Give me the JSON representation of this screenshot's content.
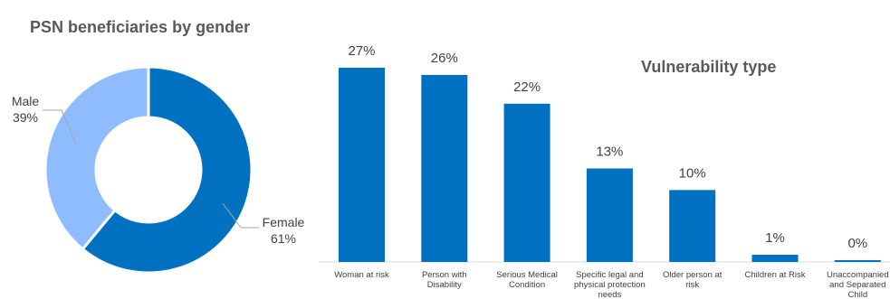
{
  "chart_data": [
    {
      "type": "pie",
      "title": "PSN beneficiaries by gender",
      "categories": [
        "Male",
        "Female"
      ],
      "values": [
        39,
        61
      ],
      "value_labels": [
        "39%",
        "61%"
      ],
      "colors": [
        "#8fbcff",
        "#0070c0"
      ],
      "donut": true
    },
    {
      "type": "bar",
      "title": "Vulnerability type",
      "categories": [
        [
          "Woman at risk"
        ],
        [
          "Person with",
          "Disability"
        ],
        [
          "Serious Medical",
          "Condition"
        ],
        [
          "Specific legal and",
          "physical protection",
          "needs"
        ],
        [
          "Older person at",
          "risk"
        ],
        [
          "Children at Risk"
        ],
        [
          "Unaccompanied",
          "and Separated",
          "Child"
        ]
      ],
      "values": [
        27,
        26,
        22,
        13,
        10,
        1,
        0
      ],
      "value_labels": [
        "27%",
        "26%",
        "22%",
        "13%",
        "10%",
        "1%",
        "0%"
      ],
      "ylim": [
        0,
        27
      ],
      "color": "#0070c0",
      "grid": false
    }
  ]
}
